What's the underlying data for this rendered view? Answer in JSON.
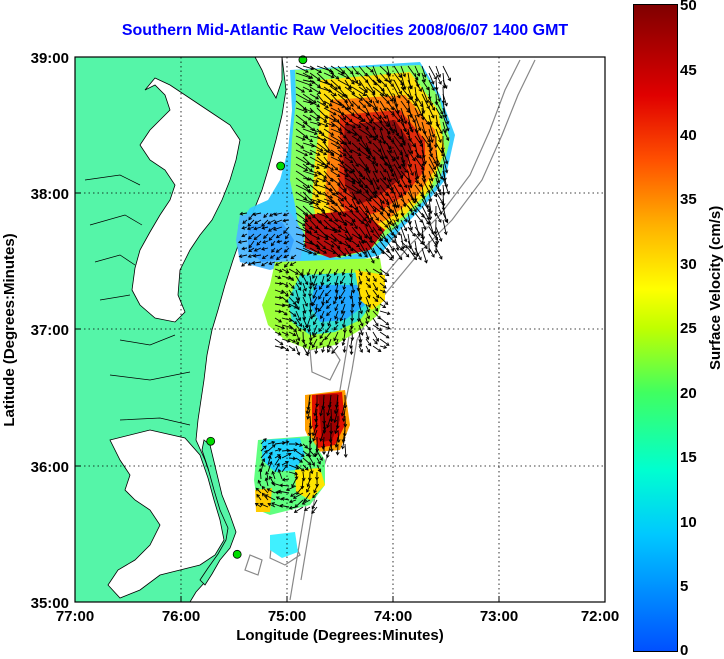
{
  "title": "Southern Mid-Atlantic Raw Velocities 2008/06/07 1400 GMT",
  "x_axis": {
    "label": "Longitude (Degrees:Minutes)",
    "ticks": [
      "77:00",
      "76:00",
      "75:00",
      "74:00",
      "73:00",
      "72:00"
    ]
  },
  "y_axis": {
    "label": "Latitude (Degrees:Minutes)",
    "ticks": [
      "39:00",
      "38:00",
      "37:00",
      "36:00",
      "35:00"
    ]
  },
  "colorbar": {
    "label": "Surface Velocity (cm/s)",
    "ticks": [
      "50",
      "45",
      "40",
      "35",
      "30",
      "25",
      "20",
      "15",
      "10",
      "5",
      "0"
    ],
    "range": [
      0,
      50
    ]
  },
  "colors": {
    "land": "#55f5a8",
    "water": "#ffffff",
    "stations": "#00dd00",
    "title": "#0000ff"
  },
  "stations_lonlat": [
    [
      -74.85,
      38.98
    ],
    [
      -75.06,
      38.2
    ],
    [
      -75.72,
      36.18
    ],
    [
      -75.47,
      35.35
    ]
  ]
}
